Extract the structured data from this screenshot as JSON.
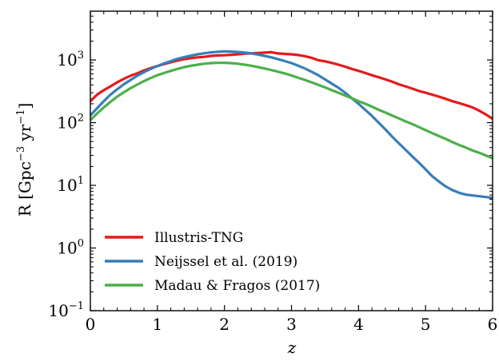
{
  "chart_data": {
    "type": "line",
    "title": "",
    "xlabel": "z",
    "ylabel_parts": {
      "prefix": "R [Gpc",
      "exp1": "−3",
      "middle": " yr",
      "exp2": "−1",
      "suffix": "]"
    },
    "xlim": [
      0,
      6
    ],
    "ylim": [
      0.1,
      6000
    ],
    "yscale": "log",
    "grid": false,
    "legend_position": "lower-left",
    "x_ticks": [
      "0",
      "1",
      "2",
      "3",
      "4",
      "5",
      "6"
    ],
    "y_ticks": [
      {
        "base": "10",
        "exp": "−1",
        "value": 0.1
      },
      {
        "base": "10",
        "exp": "0",
        "value": 1
      },
      {
        "base": "10",
        "exp": "1",
        "value": 10
      },
      {
        "base": "10",
        "exp": "2",
        "value": 100
      },
      {
        "base": "10",
        "exp": "3",
        "value": 1000
      }
    ],
    "series": [
      {
        "name": "Illustris-TNG",
        "color": "#e41a1c",
        "x": [
          0,
          0.1,
          0.2,
          0.3,
          0.4,
          0.5,
          0.6,
          0.7,
          0.8,
          0.9,
          1.0,
          1.1,
          1.2,
          1.3,
          1.4,
          1.5,
          1.6,
          1.7,
          1.8,
          1.9,
          2.0,
          2.1,
          2.2,
          2.3,
          2.4,
          2.5,
          2.6,
          2.7,
          2.8,
          2.9,
          3.0,
          3.1,
          3.2,
          3.3,
          3.4,
          3.5,
          3.6,
          3.7,
          3.8,
          3.9,
          4.0,
          4.1,
          4.2,
          4.3,
          4.4,
          4.5,
          4.6,
          4.7,
          4.8,
          4.9,
          5.0,
          5.1,
          5.2,
          5.3,
          5.4,
          5.5,
          5.6,
          5.7,
          5.8,
          5.9,
          6.0
        ],
        "y": [
          220,
          280,
          330,
          380,
          440,
          500,
          560,
          610,
          680,
          740,
          800,
          860,
          920,
          980,
          1030,
          1070,
          1100,
          1120,
          1160,
          1180,
          1190,
          1210,
          1230,
          1260,
          1270,
          1290,
          1310,
          1330,
          1270,
          1250,
          1230,
          1200,
          1150,
          1080,
          990,
          950,
          900,
          840,
          780,
          720,
          670,
          620,
          570,
          530,
          490,
          450,
          410,
          380,
          350,
          320,
          300,
          280,
          260,
          240,
          220,
          205,
          190,
          175,
          155,
          135,
          115
        ]
      },
      {
        "name": "Neijssel et al. (2019)",
        "color": "#377eb8",
        "x": [
          0,
          0.1,
          0.2,
          0.3,
          0.4,
          0.5,
          0.6,
          0.7,
          0.8,
          0.9,
          1.0,
          1.1,
          1.2,
          1.3,
          1.4,
          1.5,
          1.6,
          1.7,
          1.8,
          1.9,
          2.0,
          2.1,
          2.2,
          2.3,
          2.4,
          2.5,
          2.6,
          2.7,
          2.8,
          2.9,
          3.0,
          3.1,
          3.2,
          3.3,
          3.4,
          3.5,
          3.6,
          3.7,
          3.8,
          3.9,
          4.0,
          4.1,
          4.2,
          4.3,
          4.4,
          4.5,
          4.6,
          4.7,
          4.8,
          4.9,
          5.0,
          5.1,
          5.2,
          5.3,
          5.4,
          5.5,
          5.6,
          5.7,
          5.8,
          5.9,
          6.0
        ],
        "y": [
          130,
          170,
          220,
          280,
          340,
          410,
          480,
          560,
          640,
          720,
          800,
          880,
          960,
          1040,
          1110,
          1170,
          1230,
          1280,
          1320,
          1350,
          1370,
          1360,
          1340,
          1310,
          1270,
          1220,
          1160,
          1100,
          1030,
          960,
          890,
          810,
          730,
          650,
          570,
          490,
          420,
          360,
          300,
          245,
          200,
          160,
          128,
          100,
          78,
          60,
          47,
          37,
          29,
          23,
          18,
          14,
          11.5,
          9.6,
          8.4,
          7.6,
          7.1,
          6.9,
          6.7,
          6.5,
          6.3
        ]
      },
      {
        "name": "Madau & Fragos (2017)",
        "color": "#4daf4a",
        "x": [
          0,
          0.1,
          0.2,
          0.3,
          0.4,
          0.5,
          0.6,
          0.7,
          0.8,
          0.9,
          1.0,
          1.1,
          1.2,
          1.3,
          1.4,
          1.5,
          1.6,
          1.7,
          1.8,
          1.9,
          2.0,
          2.1,
          2.2,
          2.3,
          2.4,
          2.5,
          2.6,
          2.7,
          2.8,
          2.9,
          3.0,
          3.1,
          3.2,
          3.3,
          3.4,
          3.5,
          3.6,
          3.7,
          3.8,
          3.9,
          4.0,
          4.1,
          4.2,
          4.3,
          4.4,
          4.5,
          4.6,
          4.7,
          4.8,
          4.9,
          5.0,
          5.1,
          5.2,
          5.3,
          5.4,
          5.5,
          5.6,
          5.7,
          5.8,
          5.9,
          6.0
        ],
        "y": [
          110,
          140,
          175,
          215,
          260,
          305,
          355,
          405,
          460,
          515,
          570,
          620,
          670,
          720,
          770,
          810,
          840,
          870,
          890,
          900,
          900,
          890,
          870,
          840,
          810,
          770,
          730,
          690,
          650,
          610,
          565,
          520,
          480,
          440,
          400,
          365,
          330,
          300,
          270,
          245,
          220,
          200,
          180,
          160,
          145,
          130,
          117,
          105,
          95,
          85,
          76,
          68,
          61,
          55,
          49,
          44,
          40,
          36,
          33,
          30,
          27
        ]
      }
    ]
  }
}
